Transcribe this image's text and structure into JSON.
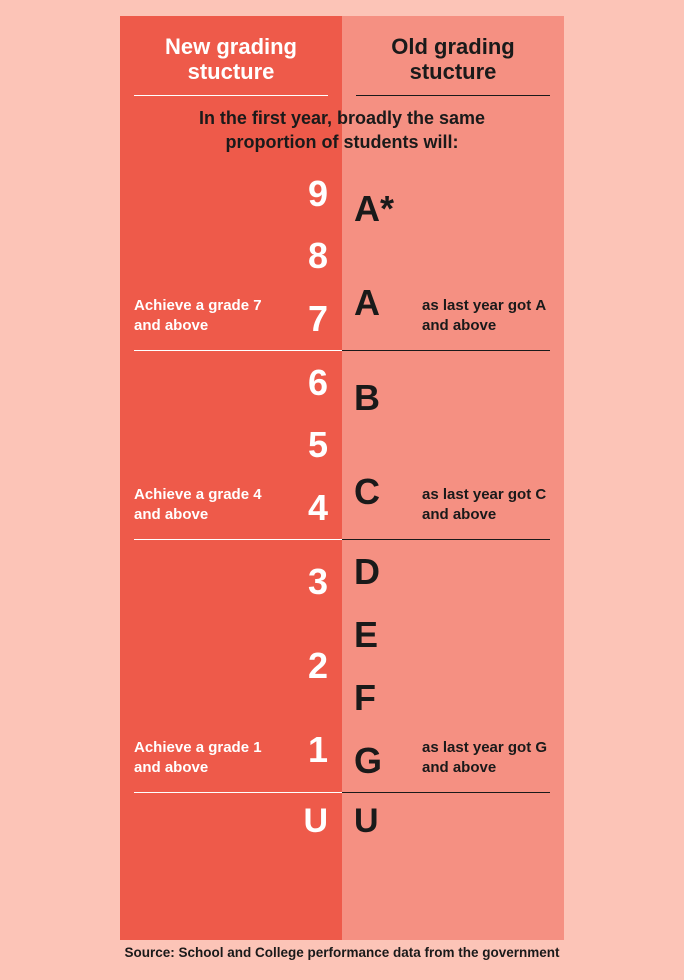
{
  "colors": {
    "page_bg": "#fcc4b7",
    "left_col": "#ee5a4a",
    "right_col": "#f59082",
    "text_dark": "#1a1a1a",
    "text_light": "#ffffff",
    "rule_light": "#ffffff",
    "rule_dark": "#1a1a1a"
  },
  "header": {
    "left": "New grading stucture",
    "right": "Old grading stucture"
  },
  "subhead": "In the first year, broadly the same proportion of students will:",
  "bands": [
    {
      "desc_html": "Achieve a grade <strong>7</strong> and above",
      "nums": [
        "9",
        "8",
        "7"
      ],
      "letters": [
        "A*",
        "A"
      ],
      "note_html": "as last year got <strong>A</strong> and above"
    },
    {
      "desc_html": "Achieve a grade <strong>4</strong> and above",
      "nums": [
        "6",
        "5",
        "4"
      ],
      "letters": [
        "B",
        "C"
      ],
      "note_html": "as last year got <strong>C</strong> and above"
    },
    {
      "desc_html": "Achieve a grade <strong>1</strong> and above",
      "nums": [
        "3",
        "2",
        "1"
      ],
      "letters": [
        "D",
        "E",
        "F",
        "G"
      ],
      "note_html": "as last year got <strong>G</strong> and above"
    },
    {
      "desc_html": "",
      "nums": [
        "U"
      ],
      "letters": [
        "U"
      ],
      "note_html": ""
    }
  ],
  "source": "Source: School and College performance data from the government",
  "typography": {
    "header_fontsize": 22,
    "subhead_fontsize": 18,
    "grade_fontsize": 36,
    "desc_fontsize": 15,
    "source_fontsize": 13.5
  }
}
